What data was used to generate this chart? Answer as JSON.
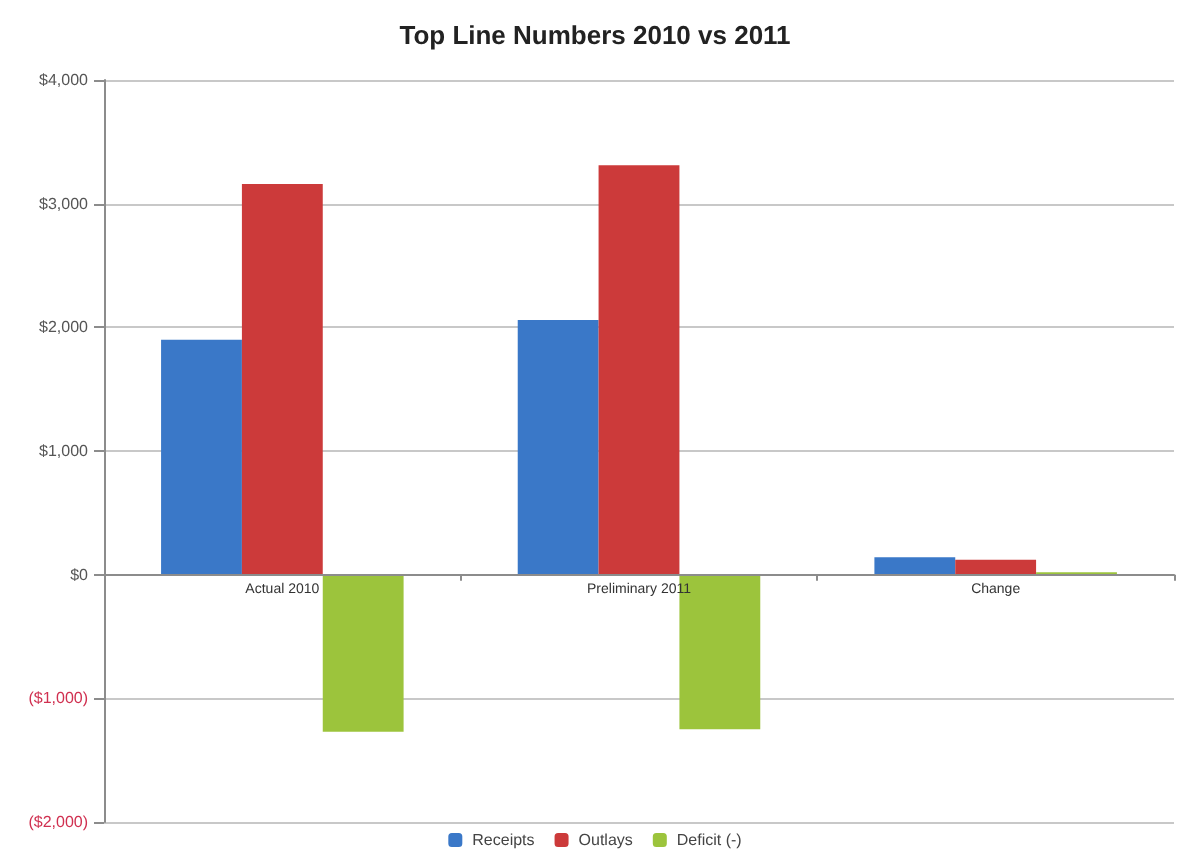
{
  "chart_data": {
    "type": "bar",
    "title": "Top Line Numbers 2010 vs 2011",
    "categories": [
      "Actual 2010",
      "Preliminary 2011",
      "Change"
    ],
    "series": [
      {
        "name": "Receipts",
        "color": "#3a78c8",
        "values": [
          1900,
          2060,
          140
        ]
      },
      {
        "name": "Outlays",
        "color": "#cc3a3a",
        "values": [
          3160,
          3310,
          120
        ]
      },
      {
        "name": "Deficit (-)",
        "color": "#9cc43c",
        "values": [
          -1270,
          -1250,
          20
        ]
      }
    ],
    "ylim": [
      -2000,
      4000
    ],
    "yticks": [
      {
        "value": -2000,
        "label": "($2,000)"
      },
      {
        "value": -1000,
        "label": "($1,000)"
      },
      {
        "value": 0,
        "label": "$0"
      },
      {
        "value": 1000,
        "label": "$1,000"
      },
      {
        "value": 2000,
        "label": "$2,000"
      },
      {
        "value": 3000,
        "label": "$3,000"
      },
      {
        "value": 4000,
        "label": "$4,000"
      }
    ],
    "grid": "y",
    "legend": "bottom"
  }
}
